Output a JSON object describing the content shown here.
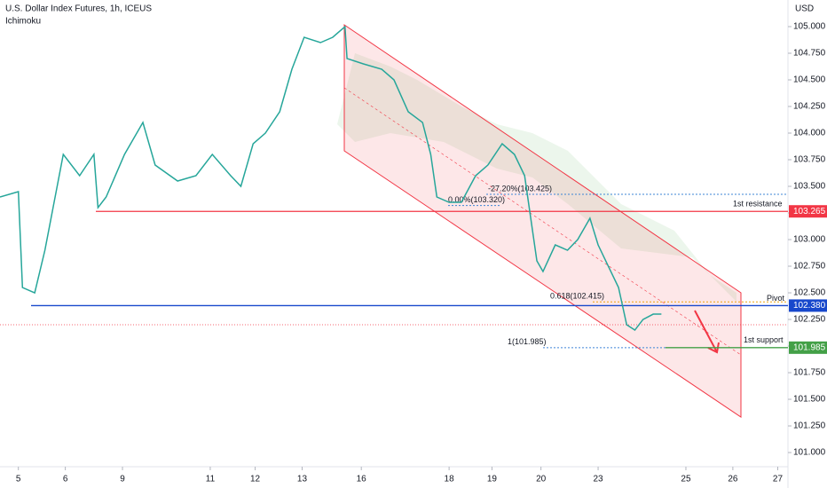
{
  "chart_data": {
    "type": "line",
    "title": "U.S. Dollar Index Futures, 1h, ICEUS",
    "subtitle": "Ichimoku",
    "y_axis_label": "USD",
    "x": [
      -9,
      0,
      2,
      8,
      13,
      17,
      22,
      30,
      37,
      39,
      43,
      52,
      61,
      67,
      78,
      87,
      95,
      104,
      109,
      115,
      121,
      128,
      134,
      140,
      148,
      154,
      160,
      161,
      169,
      178,
      184,
      191,
      198,
      202,
      205,
      211,
      217,
      224,
      230,
      237,
      243,
      248,
      251,
      254,
      257,
      263,
      269,
      274,
      280,
      284,
      289,
      294,
      298,
      302,
      306,
      311,
      315
    ],
    "series": [
      {
        "name": "Price",
        "color": "#26a69a",
        "values": [
          103.4,
          103.45,
          102.55,
          102.5,
          102.9,
          103.3,
          103.8,
          103.6,
          103.8,
          103.3,
          103.4,
          103.8,
          104.1,
          103.7,
          103.55,
          103.6,
          103.8,
          103.6,
          103.5,
          103.9,
          104.0,
          104.2,
          104.6,
          104.9,
          104.85,
          104.9,
          105.0,
          104.7,
          104.65,
          104.6,
          104.5,
          104.2,
          104.1,
          103.8,
          103.4,
          103.35,
          103.35,
          103.6,
          103.7,
          103.9,
          103.8,
          103.6,
          103.2,
          102.8,
          102.7,
          102.95,
          102.9,
          103.0,
          103.2,
          102.95,
          102.75,
          102.55,
          102.2,
          102.15,
          102.25,
          102.3,
          102.3
        ]
      }
    ],
    "xlim": [
      -9,
      377
    ],
    "ylim": [
      100.867,
      105.25
    ],
    "xticks": [
      {
        "value": 0,
        "label": "5"
      },
      {
        "value": 23,
        "label": "6"
      },
      {
        "value": 51,
        "label": "9"
      },
      {
        "value": 94,
        "label": "11"
      },
      {
        "value": 116,
        "label": "12"
      },
      {
        "value": 139,
        "label": "13"
      },
      {
        "value": 168,
        "label": "16"
      },
      {
        "value": 211,
        "label": "18"
      },
      {
        "value": 232,
        "label": "19"
      },
      {
        "value": 256,
        "label": "20"
      },
      {
        "value": 284,
        "label": "23"
      },
      {
        "value": 327,
        "label": "25"
      },
      {
        "value": 350,
        "label": "26"
      },
      {
        "value": 372,
        "label": "27"
      }
    ],
    "yticks": [
      {
        "value": 101,
        "label": "101.000"
      },
      {
        "value": 101.25,
        "label": "101.250"
      },
      {
        "value": 101.5,
        "label": "101.500"
      },
      {
        "value": 101.75,
        "label": "101.750"
      },
      {
        "value": 102,
        "label": "102.000"
      },
      {
        "value": 102.25,
        "label": "102.250"
      },
      {
        "value": 102.5,
        "label": "102.500"
      },
      {
        "value": 102.75,
        "label": "102.750"
      },
      {
        "value": 103,
        "label": "103.000"
      },
      {
        "value": 103.25,
        "label": "103.250"
      },
      {
        "value": 103.5,
        "label": "103.500"
      },
      {
        "value": 103.75,
        "label": "103.750"
      },
      {
        "value": 104,
        "label": "104.000"
      },
      {
        "value": 104.25,
        "label": "104.250"
      },
      {
        "value": 104.5,
        "label": "104.500"
      },
      {
        "value": 104.75,
        "label": "104.750"
      },
      {
        "value": 105,
        "label": "105.000"
      }
    ],
    "levels": [
      {
        "name": "1st resistance",
        "value": 103.265,
        "value_label": "103.265",
        "color": "#f23645"
      },
      {
        "name": "Pivot",
        "value": 102.38,
        "value_label": "102.380",
        "color": "#1848cc"
      },
      {
        "name": "1st support",
        "value": 101.985,
        "value_label": "101.985",
        "color": "#43a047"
      }
    ],
    "annotations": [
      {
        "value": 103.425,
        "label": "-27.20%(103.425)",
        "color": "#3d85d6"
      },
      {
        "value": 103.32,
        "label": "0.00%(103.320)",
        "color": "#3d85d6"
      },
      {
        "value": 102.415,
        "label": "0.618(102.415)",
        "color": "#f0a30a"
      },
      {
        "value": 101.985,
        "label": "1(101.985)",
        "color": "#3d85d6"
      }
    ]
  }
}
